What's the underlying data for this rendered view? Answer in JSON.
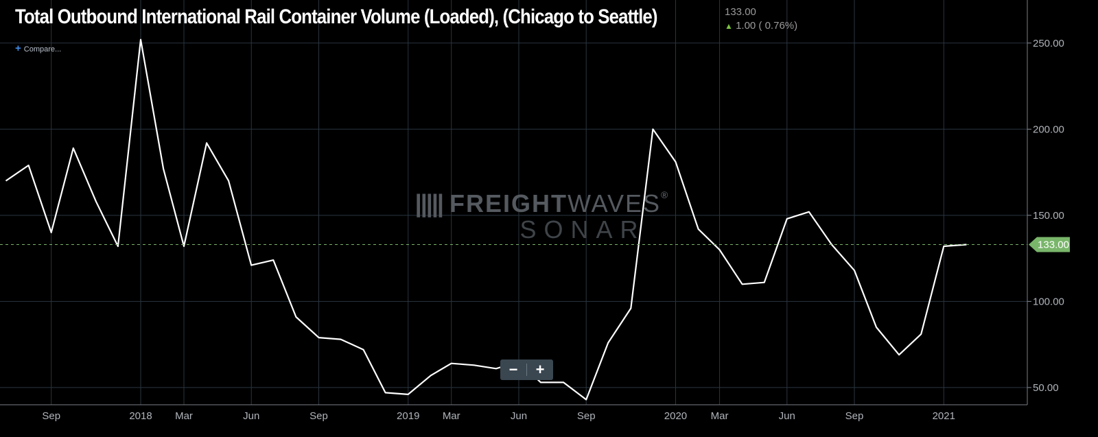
{
  "header": {
    "title": "Total Outbound International Rail Container Volume (Loaded), (Chicago to Seattle)",
    "last_value": "133.00",
    "change_arrow": "▲",
    "change": "1.00 ( 0.76%)",
    "compare_plus": "+",
    "compare_label": "Compare..."
  },
  "watermark": {
    "brand_bold": "FREIGHT",
    "brand_light": "WAVES",
    "mark": "®",
    "product": "SONAR"
  },
  "zoom": {
    "minus": "−",
    "plus": "+"
  },
  "colors": {
    "background": "#000000",
    "line": "#ffffff",
    "grid": "#2b3540",
    "axis_text": "#b0b5bb",
    "last_value_tag": "#79b66a",
    "change_up": "#7cc242"
  },
  "chart_data": {
    "type": "line",
    "title": "Total Outbound International Rail Container Volume (Loaded), (Chicago to Seattle)",
    "xlabel": "",
    "ylabel": "",
    "frequency": "monthly",
    "ylim": [
      40,
      275
    ],
    "xlim": [
      "2017-06-23",
      "2021-04-25"
    ],
    "y_ticks": [
      50,
      100,
      150,
      200,
      250
    ],
    "y_tick_labels": [
      "50.00",
      "100.00",
      "150.00",
      "200.00",
      "250.00"
    ],
    "x_ticks": [
      "2017-09-01",
      "2018-01-01",
      "2018-03-01",
      "2018-06-01",
      "2018-09-01",
      "2019-01-01",
      "2019-03-01",
      "2019-06-01",
      "2019-09-01",
      "2020-01-01",
      "2020-03-01",
      "2020-06-01",
      "2020-09-01",
      "2021-01-01"
    ],
    "x_tick_labels": [
      "Sep",
      "2018",
      "Mar",
      "Jun",
      "Sep",
      "2019",
      "Mar",
      "Jun",
      "Sep",
      "2020",
      "Mar",
      "Jun",
      "Sep",
      "2021"
    ],
    "last_value": 133,
    "last_value_label": "133.00",
    "grid": true,
    "series": [
      {
        "x": [
          "2017-07-01",
          "2017-08-01",
          "2017-09-01",
          "2017-10-01",
          "2017-11-01",
          "2017-12-01",
          "2018-01-01",
          "2018-02-01",
          "2018-03-01",
          "2018-04-01",
          "2018-05-01",
          "2018-06-01",
          "2018-07-01",
          "2018-08-01",
          "2018-09-01",
          "2018-10-01",
          "2018-11-01",
          "2018-12-01",
          "2019-01-01",
          "2019-02-01",
          "2019-03-01",
          "2019-04-01",
          "2019-05-01",
          "2019-06-01",
          "2019-07-01",
          "2019-08-01",
          "2019-09-01",
          "2019-10-01",
          "2019-11-01",
          "2019-12-01",
          "2020-01-01",
          "2020-02-01",
          "2020-03-01",
          "2020-04-01",
          "2020-05-01",
          "2020-06-01",
          "2020-07-01",
          "2020-08-01",
          "2020-09-01",
          "2020-10-01",
          "2020-11-01",
          "2020-12-01",
          "2021-01-01",
          "2021-02-01"
        ],
        "y": [
          170,
          179,
          140,
          189,
          158,
          132,
          252,
          177,
          132,
          192,
          170,
          121,
          124,
          91,
          79,
          78,
          72,
          47,
          46,
          57,
          64,
          63,
          61,
          65,
          53,
          53,
          43,
          76,
          96,
          200,
          181,
          142,
          130,
          110,
          111,
          148,
          152,
          133,
          118,
          85,
          69,
          81,
          132,
          133
        ]
      }
    ]
  }
}
